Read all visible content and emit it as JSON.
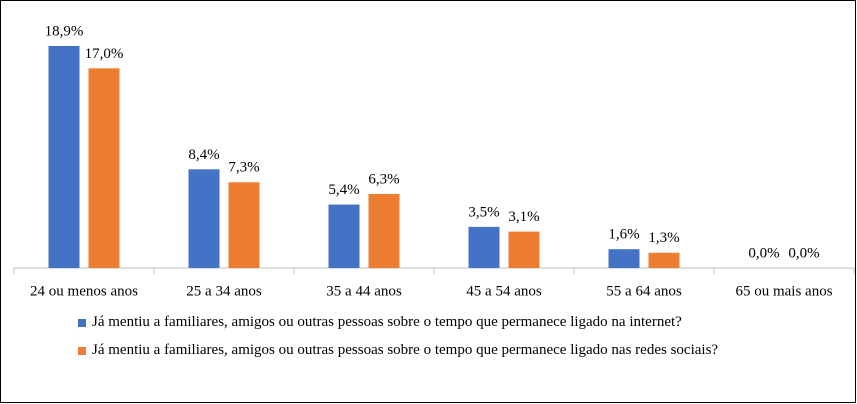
{
  "chart_data": {
    "type": "bar",
    "categories": [
      "24 ou menos anos",
      "25 a 34 anos",
      "35 a 44 anos",
      "45 a 54 anos",
      "55 a 64 anos",
      "65 ou mais anos"
    ],
    "series": [
      {
        "name": "Já mentiu a familiares, amigos ou outras pessoas sobre o tempo que permanece ligado na internet?",
        "color": "#4472c4",
        "values": [
          18.9,
          8.4,
          5.4,
          3.5,
          1.6,
          0.0
        ],
        "value_labels": [
          "18,9%",
          "8,4%",
          "5,4%",
          "3,5%",
          "1,6%",
          "0,0%"
        ]
      },
      {
        "name": "Já mentiu a familiares, amigos ou outras pessoas sobre o tempo que permanece ligado nas redes sociais?",
        "color": "#ed7d31",
        "values": [
          17.0,
          7.3,
          6.3,
          3.1,
          1.3,
          0.0
        ],
        "value_labels": [
          "17,0%",
          "7,3%",
          "6,3%",
          "3,1%",
          "1,3%",
          "0,0%"
        ]
      }
    ],
    "legend": "bottom"
  }
}
